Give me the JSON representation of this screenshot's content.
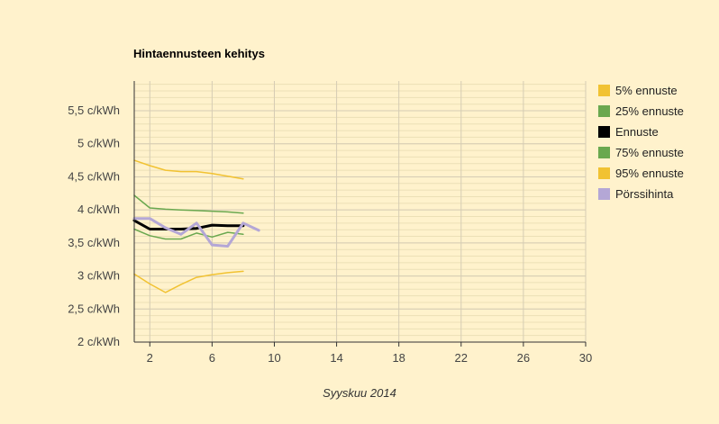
{
  "chart_data": {
    "type": "line",
    "title": "Hintaennusteen kehitys",
    "xlabel": "Syyskuu 2014",
    "ylabel": "",
    "xlim": [
      1,
      30
    ],
    "ylim": [
      2,
      5.95
    ],
    "x_ticks": [
      2,
      6,
      10,
      14,
      18,
      22,
      26,
      30
    ],
    "y_ticks": [
      {
        "v": 2,
        "label": "2 c/kWh"
      },
      {
        "v": 2.5,
        "label": "2,5 c/kWh"
      },
      {
        "v": 3,
        "label": "3 c/kWh"
      },
      {
        "v": 3.5,
        "label": "3,5 c/kWh"
      },
      {
        "v": 4,
        "label": "4 c/kWh"
      },
      {
        "v": 4.5,
        "label": "4,5 c/kWh"
      },
      {
        "v": 5,
        "label": "5 c/kWh"
      },
      {
        "v": 5.5,
        "label": "5,5 c/kWh"
      }
    ],
    "grid": true,
    "legend_position": "right",
    "series": [
      {
        "name": "5% ennuste",
        "color": "#f1c232",
        "width": 1.5,
        "x": [
          1,
          2,
          3,
          4,
          5,
          6,
          7,
          8
        ],
        "y": [
          3.03,
          2.88,
          2.75,
          2.87,
          2.98,
          3.02,
          3.05,
          3.07
        ]
      },
      {
        "name": "25% ennuste",
        "color": "#6aa84f",
        "width": 1.5,
        "x": [
          1,
          2,
          3,
          4,
          5,
          6,
          7,
          8
        ],
        "y": [
          3.71,
          3.61,
          3.56,
          3.56,
          3.65,
          3.59,
          3.66,
          3.63
        ]
      },
      {
        "name": "Ennuste",
        "color": "#000000",
        "width": 3,
        "x": [
          1,
          2,
          3,
          4,
          5,
          6,
          7,
          8
        ],
        "y": [
          3.84,
          3.71,
          3.71,
          3.71,
          3.72,
          3.77,
          3.76,
          3.76
        ]
      },
      {
        "name": "75% ennuste",
        "color": "#6aa84f",
        "width": 1.5,
        "x": [
          1,
          2,
          3,
          4,
          5,
          6,
          7,
          8
        ],
        "y": [
          4.22,
          4.03,
          4.01,
          4.0,
          3.99,
          3.98,
          3.97,
          3.95
        ]
      },
      {
        "name": "95% ennuste",
        "color": "#f1c232",
        "width": 1.5,
        "x": [
          1,
          2,
          3,
          4,
          5,
          6,
          7,
          8
        ],
        "y": [
          4.75,
          4.67,
          4.6,
          4.58,
          4.58,
          4.55,
          4.51,
          4.47
        ]
      },
      {
        "name": "Pörssihinta",
        "color": "#b4a7d6",
        "width": 3,
        "x": [
          1,
          2,
          3,
          4,
          5,
          6,
          7,
          8,
          9
        ],
        "y": [
          3.87,
          3.87,
          3.73,
          3.63,
          3.8,
          3.47,
          3.45,
          3.8,
          3.69
        ]
      }
    ]
  }
}
